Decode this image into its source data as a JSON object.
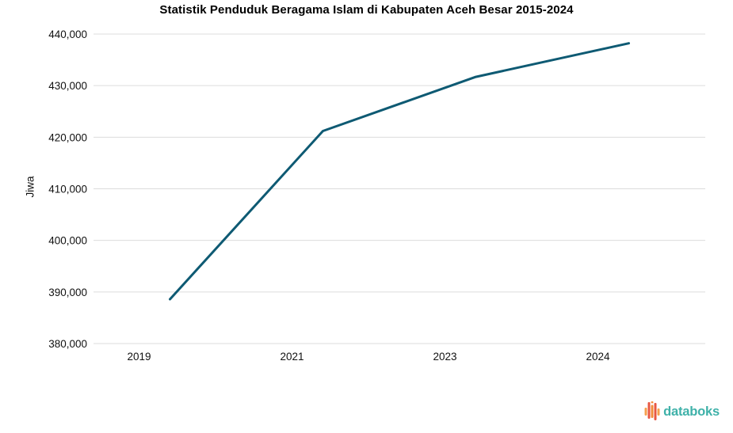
{
  "chart_data": {
    "type": "line",
    "title": "Statistik Penduduk Beragama Islam di Kabupaten Aceh Besar 2015-2024",
    "xlabel": "",
    "ylabel": "Jiwa",
    "categories": [
      "2019",
      "2021",
      "2023",
      "2024"
    ],
    "values": [
      388600,
      421200,
      431700,
      438200
    ],
    "ylim": [
      380000,
      440000
    ],
    "yticks": [
      380000,
      390000,
      400000,
      410000,
      420000,
      430000,
      440000
    ],
    "grid": "horizontal",
    "legend": "none",
    "line_color": "#0E5A73",
    "grid_color": "#DCDCDC",
    "tick_color": "#111111"
  },
  "branding": {
    "logo_text": "databoks",
    "logo_color": "#3FB1A9",
    "icon_bars": [
      {
        "x": 0.5,
        "y": 8,
        "h": 10,
        "color": "#F6A04D"
      },
      {
        "x": 4.5,
        "y": 1,
        "h": 21,
        "color": "#E85742"
      },
      {
        "x": 8.5,
        "y": 0,
        "h": 2.5,
        "color": "#F28C3B"
      },
      {
        "x": 8.5,
        "y": 4.5,
        "h": 16.5,
        "color": "#F28C3B"
      },
      {
        "x": 12.5,
        "y": 2,
        "h": 22,
        "color": "#E85742"
      },
      {
        "x": 16.5,
        "y": 9,
        "h": 9,
        "color": "#F6A04D"
      }
    ]
  }
}
